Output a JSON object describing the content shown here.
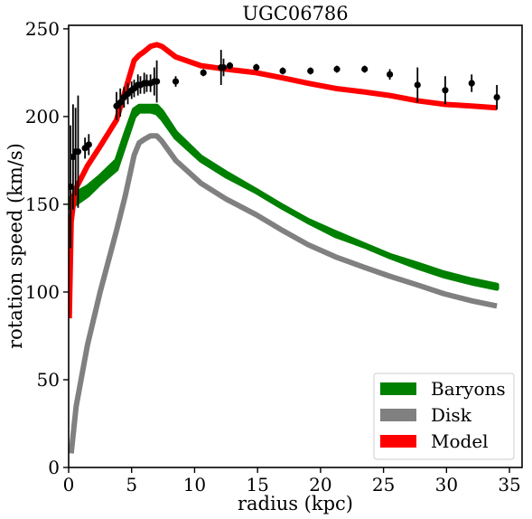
{
  "chart_data": {
    "type": "line",
    "title": "UGC06786",
    "xlabel": "radius (kpc)",
    "ylabel": "rotation speed (km/s)",
    "xlim": [
      0,
      36
    ],
    "ylim": [
      0,
      252
    ],
    "xticks": [
      0,
      5,
      10,
      15,
      20,
      25,
      30,
      35
    ],
    "yticks": [
      0,
      50,
      100,
      150,
      200,
      250
    ],
    "grid": false,
    "legend_position": "lower-right",
    "colors": {
      "baryons": "#008000",
      "disk": "#808080",
      "model": "#ff0000",
      "observed": "#000000"
    },
    "series": [
      {
        "name": "Baryons",
        "kind": "band",
        "x": [
          0.1,
          0.5,
          1.5,
          2.5,
          3.8,
          4.5,
          5.2,
          5.6,
          6.0,
          6.5,
          7.0,
          7.4,
          8.5,
          10.5,
          12.5,
          14.9,
          17.0,
          19.0,
          21.2,
          23.5,
          25.5,
          27.7,
          29.8,
          32.0,
          34.0
        ],
        "lower": [
          148,
          150,
          155,
          162,
          170,
          185,
          200,
          203,
          203,
          203,
          202,
          199,
          188,
          175,
          166,
          157,
          148,
          140,
          132,
          126,
          120,
          114,
          109,
          105,
          102
        ],
        "upper": [
          153,
          156,
          160,
          166,
          175,
          190,
          204,
          206,
          206,
          206,
          206,
          203,
          191,
          177,
          168,
          158,
          149,
          141,
          134,
          127,
          121,
          116,
          111,
          107,
          104
        ]
      },
      {
        "name": "Disk",
        "kind": "line",
        "x": [
          0.2,
          0.6,
          1.5,
          2.5,
          3.8,
          4.5,
          5.2,
          5.6,
          6.0,
          6.5,
          7.0,
          7.4,
          8.5,
          10.5,
          12.5,
          14.9,
          17.0,
          19.0,
          21.2,
          23.5,
          25.5,
          27.7,
          29.8,
          32.0,
          34.0
        ],
        "values": [
          8,
          35,
          70,
          100,
          135,
          155,
          178,
          185,
          187,
          189,
          189,
          186,
          175,
          162,
          153,
          144,
          135,
          127,
          120,
          114,
          109,
          104,
          99,
          95,
          92
        ]
      },
      {
        "name": "Model",
        "kind": "line",
        "x": [
          0.05,
          0.2,
          0.5,
          1.0,
          1.5,
          2.5,
          3.8,
          4.5,
          5.2,
          5.6,
          6.0,
          6.5,
          7.0,
          7.4,
          8.5,
          10.5,
          12.5,
          14.9,
          17.0,
          19.0,
          21.2,
          23.5,
          25.5,
          27.7,
          29.8,
          32.0,
          34.0
        ],
        "values": [
          85,
          140,
          158,
          165,
          172,
          183,
          198,
          215,
          232,
          235,
          237,
          240,
          241,
          240,
          234,
          229,
          227,
          225,
          222,
          219,
          216,
          214,
          212,
          209,
          207,
          206,
          205
        ]
      }
    ],
    "observed": {
      "name": "",
      "x": [
        0.15,
        0.35,
        0.55,
        0.75,
        1.3,
        1.6,
        3.8,
        4.1,
        4.4,
        4.7,
        5.0,
        5.2,
        5.5,
        5.7,
        6.0,
        6.2,
        6.5,
        6.8,
        7.0,
        8.5,
        10.7,
        12.1,
        12.3,
        12.8,
        14.9,
        17.0,
        19.2,
        21.3,
        23.5,
        25.5,
        27.7,
        29.9,
        32.0,
        34.0
      ],
      "y": [
        160,
        177,
        180,
        180,
        182,
        184,
        206,
        208,
        211,
        213,
        215,
        216,
        218,
        218,
        219,
        219,
        219,
        220,
        220,
        220,
        225,
        228,
        228,
        229,
        228,
        226,
        226,
        227,
        227,
        224,
        218,
        215,
        219,
        211
      ],
      "err": [
        35,
        30,
        25,
        32,
        6,
        6,
        8,
        8,
        6,
        6,
        5,
        5,
        6,
        5,
        6,
        5,
        5,
        8,
        12,
        3,
        2,
        10,
        5,
        2,
        2,
        2,
        2,
        2,
        2,
        3,
        10,
        8,
        5,
        7
      ]
    }
  }
}
